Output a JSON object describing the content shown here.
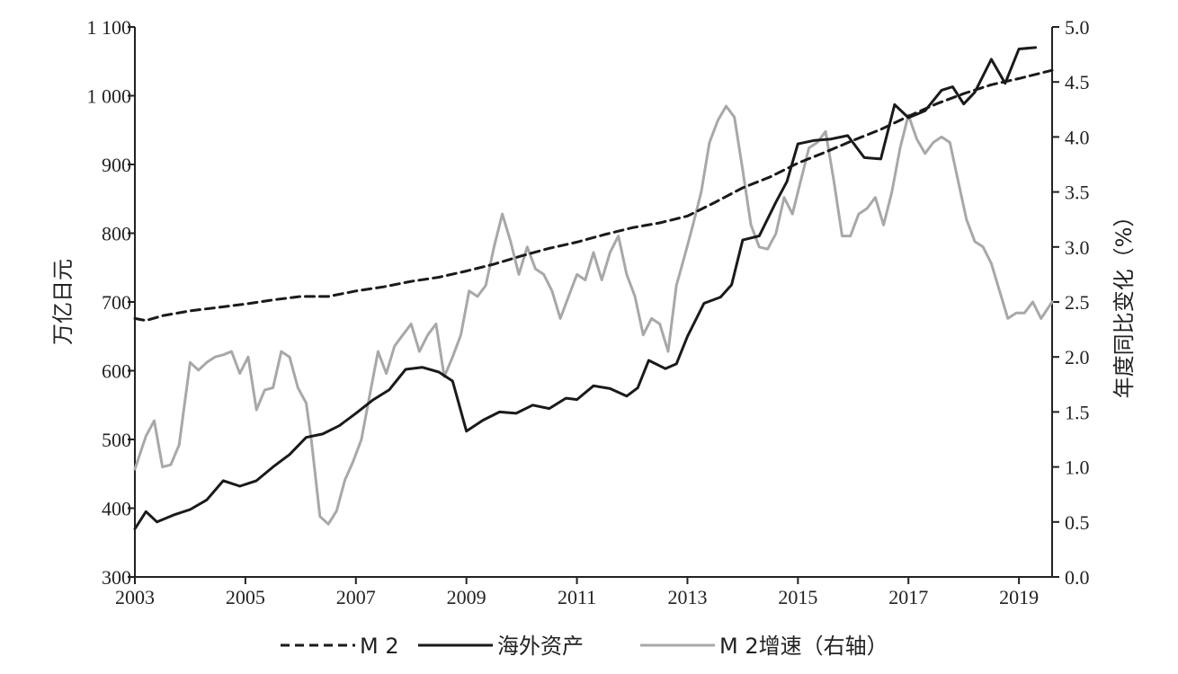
{
  "chart_data": {
    "type": "line",
    "title": "",
    "xlabel": "",
    "ylabel": "万亿日元",
    "y2label": "年度同比变化（%）",
    "xlim": [
      2003,
      2019.6
    ],
    "ylim": [
      300,
      1100
    ],
    "y2lim": [
      0.0,
      5.0
    ],
    "x_ticks": [
      "2003",
      "2005",
      "2007",
      "2009",
      "2011",
      "2013",
      "2015",
      "2017",
      "2019"
    ],
    "y_ticks": [
      "300",
      "400",
      "500",
      "600",
      "700",
      "800",
      "900",
      "1 000",
      "1 100"
    ],
    "y2_ticks": [
      "0.0",
      "0.5",
      "1.0",
      "1.5",
      "2.0",
      "2.5",
      "3.0",
      "3.5",
      "4.0",
      "4.5",
      "5.0"
    ],
    "grid": false,
    "legend_position": "bottom",
    "series": [
      {
        "name": "M 2",
        "axis": "left",
        "style": "dashed",
        "color": "#1a1a1a",
        "x": [
          2003.0,
          2003.2,
          2003.5,
          2004.0,
          2004.5,
          2005.0,
          2005.5,
          2006.0,
          2006.5,
          2007.0,
          2007.5,
          2008.0,
          2008.5,
          2009.0,
          2009.5,
          2010.0,
          2010.5,
          2011.0,
          2011.5,
          2012.0,
          2012.5,
          2013.0,
          2013.5,
          2014.0,
          2014.5,
          2015.0,
          2015.5,
          2016.0,
          2016.5,
          2017.0,
          2017.5,
          2018.0,
          2018.5,
          2019.0,
          2019.6
        ],
        "y": [
          676,
          673,
          680,
          687,
          692,
          697,
          703,
          708,
          708,
          716,
          722,
          730,
          736,
          745,
          755,
          767,
          778,
          787,
          798,
          808,
          815,
          825,
          845,
          866,
          882,
          902,
          918,
          935,
          951,
          970,
          988,
          1003,
          1016,
          1025,
          1037
        ]
      },
      {
        "name": "海外资产",
        "axis": "left",
        "style": "solid",
        "color": "#1a1a1a",
        "x": [
          2003.0,
          2003.2,
          2003.4,
          2003.7,
          2004.0,
          2004.3,
          2004.6,
          2004.9,
          2005.2,
          2005.5,
          2005.8,
          2006.1,
          2006.4,
          2006.7,
          2007.0,
          2007.3,
          2007.6,
          2007.9,
          2008.2,
          2008.5,
          2008.75,
          2009.0,
          2009.3,
          2009.6,
          2009.9,
          2010.2,
          2010.5,
          2010.8,
          2011.0,
          2011.3,
          2011.6,
          2011.9,
          2012.1,
          2012.3,
          2012.6,
          2012.8,
          2013.0,
          2013.3,
          2013.6,
          2013.8,
          2014.0,
          2014.3,
          2014.6,
          2014.8,
          2015.0,
          2015.3,
          2015.6,
          2015.9,
          2016.2,
          2016.5,
          2016.75,
          2017.0,
          2017.3,
          2017.6,
          2017.8,
          2018.0,
          2018.2,
          2018.5,
          2018.75,
          2019.0,
          2019.3
        ],
        "y": [
          370,
          395,
          380,
          390,
          398,
          412,
          440,
          432,
          440,
          460,
          478,
          503,
          508,
          520,
          538,
          557,
          572,
          602,
          605,
          598,
          585,
          512,
          528,
          540,
          538,
          550,
          545,
          560,
          558,
          578,
          574,
          563,
          575,
          615,
          603,
          610,
          650,
          698,
          707,
          725,
          790,
          796,
          845,
          875,
          930,
          935,
          937,
          942,
          910,
          908,
          987,
          968,
          978,
          1008,
          1013,
          988,
          1005,
          1053,
          1018,
          1068,
          1070
        ]
      },
      {
        "name": "M 2增速（右轴）",
        "axis": "right",
        "style": "solid",
        "color": "#a8a8a8",
        "x": [
          2003.0,
          2003.2,
          2003.35,
          2003.5,
          2003.65,
          2003.8,
          2004.0,
          2004.15,
          2004.3,
          2004.45,
          2004.6,
          2004.75,
          2004.9,
          2005.05,
          2005.2,
          2005.35,
          2005.5,
          2005.65,
          2005.8,
          2005.95,
          2006.1,
          2006.2,
          2006.35,
          2006.5,
          2006.65,
          2006.8,
          2006.95,
          2007.1,
          2007.25,
          2007.4,
          2007.55,
          2007.7,
          2007.85,
          2008.0,
          2008.15,
          2008.3,
          2008.45,
          2008.6,
          2008.75,
          2008.9,
          2009.05,
          2009.2,
          2009.35,
          2009.5,
          2009.65,
          2009.8,
          2009.95,
          2010.1,
          2010.25,
          2010.4,
          2010.55,
          2010.7,
          2010.85,
          2011.0,
          2011.15,
          2011.3,
          2011.45,
          2011.6,
          2011.75,
          2011.9,
          2012.05,
          2012.2,
          2012.35,
          2012.5,
          2012.65,
          2012.8,
          2012.95,
          2013.1,
          2013.25,
          2013.4,
          2013.55,
          2013.7,
          2013.85,
          2014.0,
          2014.15,
          2014.3,
          2014.45,
          2014.6,
          2014.75,
          2014.9,
          2015.05,
          2015.2,
          2015.35,
          2015.5,
          2015.65,
          2015.8,
          2015.95,
          2016.1,
          2016.25,
          2016.4,
          2016.55,
          2016.7,
          2016.85,
          2017.0,
          2017.15,
          2017.3,
          2017.45,
          2017.6,
          2017.75,
          2017.9,
          2018.05,
          2018.2,
          2018.35,
          2018.5,
          2018.65,
          2018.8,
          2018.95,
          2019.1,
          2019.25,
          2019.4,
          2019.6
        ],
        "y": [
          0.98,
          1.28,
          1.42,
          1.0,
          1.02,
          1.2,
          1.95,
          1.88,
          1.95,
          2.0,
          2.02,
          2.05,
          1.85,
          2.0,
          1.52,
          1.7,
          1.72,
          2.05,
          2.0,
          1.72,
          1.58,
          1.22,
          0.55,
          0.48,
          0.6,
          0.88,
          1.05,
          1.25,
          1.65,
          2.05,
          1.85,
          2.1,
          2.2,
          2.3,
          2.05,
          2.2,
          2.3,
          1.82,
          2.0,
          2.2,
          2.6,
          2.55,
          2.65,
          3.0,
          3.3,
          3.05,
          2.75,
          3.0,
          2.8,
          2.75,
          2.6,
          2.35,
          2.55,
          2.75,
          2.7,
          2.95,
          2.7,
          2.95,
          3.1,
          2.75,
          2.55,
          2.2,
          2.35,
          2.3,
          2.05,
          2.65,
          2.92,
          3.2,
          3.5,
          3.95,
          4.15,
          4.28,
          4.18,
          3.7,
          3.2,
          3.0,
          2.98,
          3.12,
          3.45,
          3.3,
          3.6,
          3.9,
          3.95,
          4.05,
          3.6,
          3.1,
          3.1,
          3.3,
          3.35,
          3.45,
          3.2,
          3.5,
          3.9,
          4.2,
          3.98,
          3.85,
          3.95,
          4.0,
          3.95,
          3.6,
          3.25,
          3.05,
          3.0,
          2.85,
          2.6,
          2.35,
          2.4,
          2.4,
          2.5,
          2.35,
          2.5
        ]
      }
    ]
  }
}
